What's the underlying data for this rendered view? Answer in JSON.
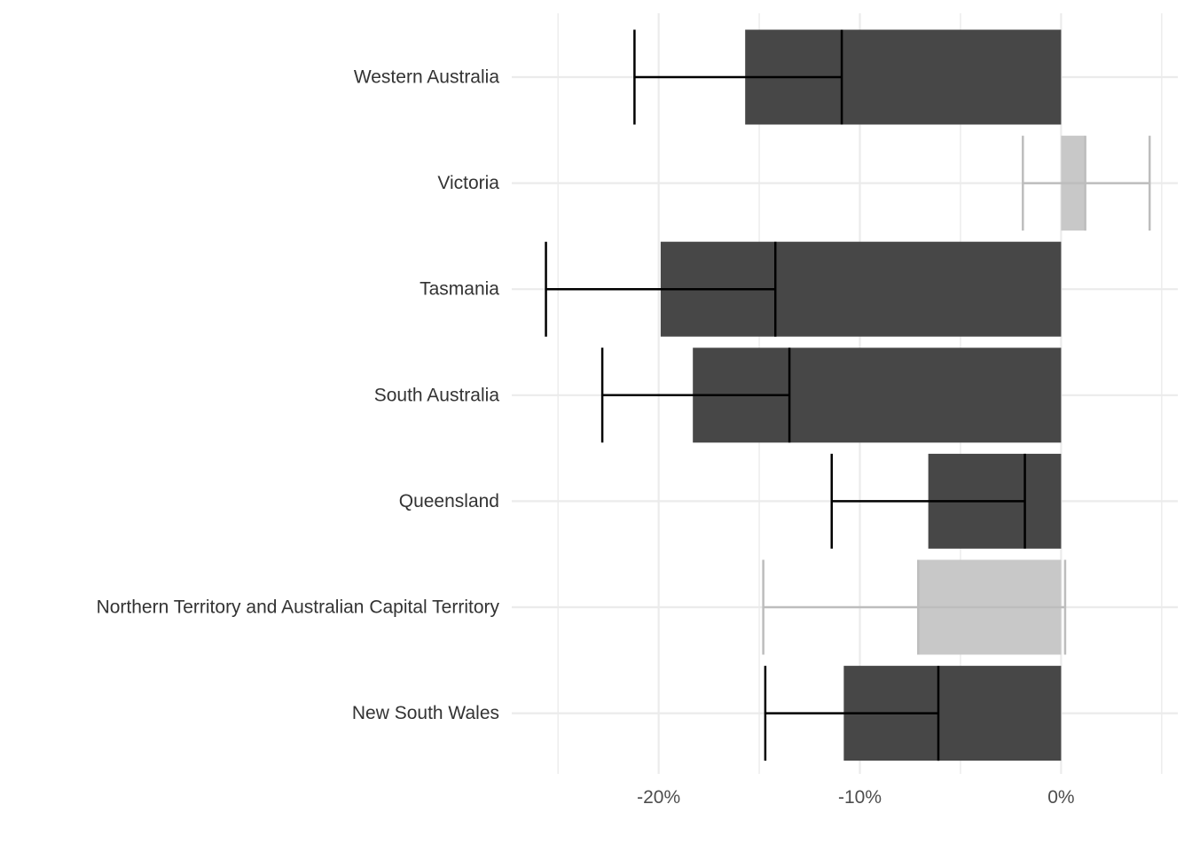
{
  "chart_data": {
    "type": "bar",
    "orientation": "horizontal",
    "categories": [
      "Western Australia",
      "Victoria",
      "Tasmania",
      "South Australia",
      "Queensland",
      "Northern Territory and Australian Capital Territory",
      "New South Wales"
    ],
    "values": [
      -15.7,
      1.2,
      -19.9,
      -18.3,
      -6.6,
      -7.1,
      -10.8
    ],
    "error_low": [
      -21.2,
      -1.9,
      -25.6,
      -22.8,
      -11.4,
      -14.8,
      -14.7
    ],
    "error_mid": [
      -10.9,
      1.2,
      -14.2,
      -13.5,
      -1.8,
      -7.1,
      -6.1
    ],
    "error_high": [
      -10.9,
      4.4,
      -14.2,
      -13.5,
      -1.8,
      0.2,
      -6.1
    ],
    "significant": [
      true,
      false,
      true,
      true,
      true,
      false,
      true
    ],
    "xlim": [
      -27.3,
      5.8
    ],
    "x_ticks": [
      -20,
      -10,
      0
    ],
    "x_tick_labels": [
      "-20%",
      "-10%",
      "0%"
    ],
    "title": "",
    "xlabel": "",
    "ylabel": "",
    "grid": true,
    "legend": "none",
    "colors": {
      "significant_fill": "#474747",
      "nonsignificant_fill": "#c8c8c8",
      "significant_error": "#000000",
      "nonsignificant_error": "#bdbdbd",
      "grid": "#ebebeb"
    }
  }
}
